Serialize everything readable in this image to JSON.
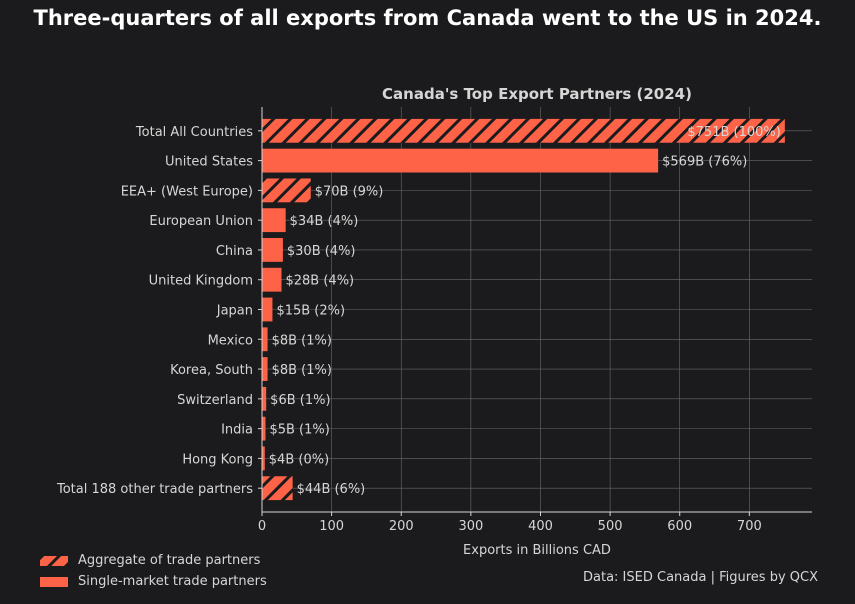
{
  "figure": {
    "suptitle": "Three-quarters of all exports from Canada went to the US in 2024.",
    "footer": "Data: ISED Canada | Figures by QCX"
  },
  "colors": {
    "background": "#1b1b1d",
    "bar": "#ff6347",
    "hatch": "#1b1b1d",
    "grid": "#6a6a6a",
    "text": "#d6d6d6"
  },
  "legend": [
    {
      "label": "Aggregate of trade partners",
      "style": "hatched"
    },
    {
      "label": "Single-market trade partners",
      "style": "solid"
    }
  ],
  "chart_data": {
    "type": "bar",
    "orientation": "horizontal",
    "title": "Canada's Top Export Partners (2024)",
    "xlabel": "Exports in Billions CAD",
    "ylabel": "",
    "xlim": [
      0,
      790
    ],
    "xticks": [
      0,
      100,
      200,
      300,
      400,
      500,
      600,
      700
    ],
    "grid": true,
    "legend_position": "bottom-left",
    "categories": [
      "Total All Countries",
      "United States",
      "EEA+ (West Europe)",
      "European Union",
      "China",
      "United Kingdom",
      "Japan",
      "Mexico",
      "Korea, South",
      "Switzerland",
      "India",
      "Hong Kong",
      "Total 188 other trade partners"
    ],
    "values": [
      751,
      569,
      70,
      34,
      30,
      28,
      15,
      8,
      8,
      6,
      5,
      4,
      44
    ],
    "labels": [
      "$751B (100%)",
      "$569B (76%)",
      "$70B (9%)",
      "$34B (4%)",
      "$30B (4%)",
      "$28B (4%)",
      "$15B (2%)",
      "$8B (1%)",
      "$8B (1%)",
      "$6B (1%)",
      "$5B (1%)",
      "$4B (0%)",
      "$44B (6%)"
    ],
    "aggregate": [
      true,
      false,
      true,
      false,
      false,
      false,
      false,
      false,
      false,
      false,
      false,
      false,
      true
    ]
  }
}
